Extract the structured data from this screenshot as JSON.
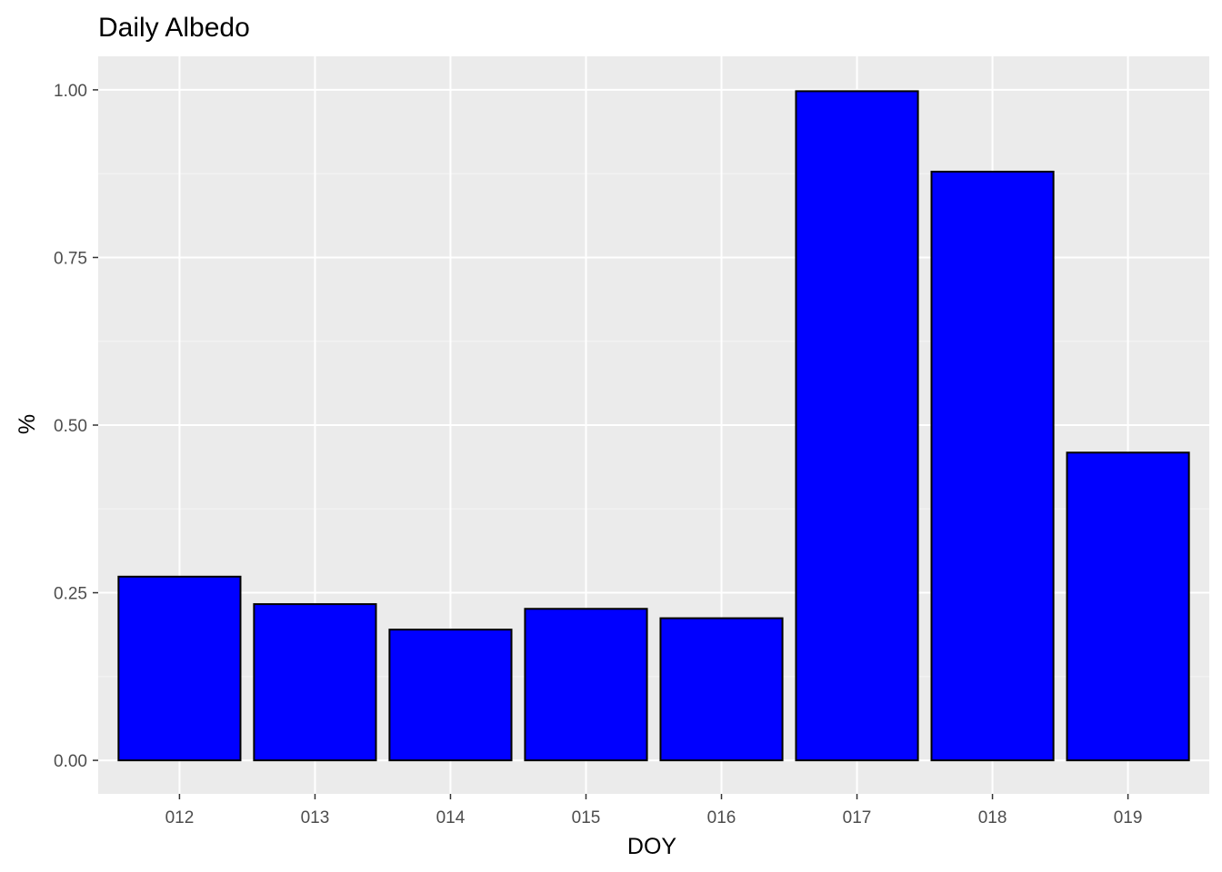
{
  "chart_data": {
    "type": "bar",
    "title": "Daily Albedo",
    "xlabel": "DOY",
    "ylabel": "%",
    "categories": [
      "012",
      "013",
      "014",
      "015",
      "016",
      "017",
      "018",
      "019"
    ],
    "values": [
      0.274,
      0.233,
      0.195,
      0.226,
      0.212,
      0.998,
      0.878,
      0.459
    ],
    "ylim": [
      -0.05,
      1.05
    ],
    "yticks": [
      0.0,
      0.25,
      0.5,
      0.75,
      1.0
    ],
    "ytick_labels": [
      "0.00",
      "0.25",
      "0.50",
      "0.75",
      "1.00"
    ],
    "grid": true,
    "legend": "none",
    "colors": {
      "bar_fill": "#0000ff",
      "bar_stroke": "#000000",
      "panel_background": "#ebebeb",
      "grid_major": "#ffffff",
      "grid_minor": "#f5f5f5"
    }
  }
}
